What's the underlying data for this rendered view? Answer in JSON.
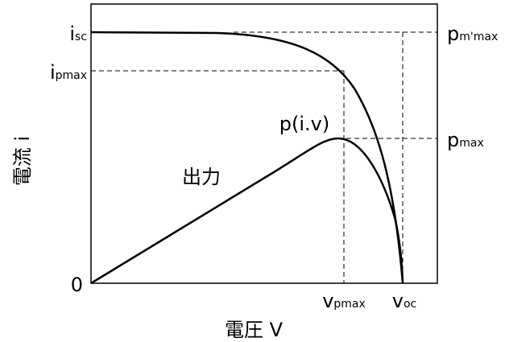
{
  "diagram": {
    "x_axis_title": "電圧 V",
    "y_axis_title": "電流 i",
    "origin_label": "0",
    "left_labels": [
      {
        "main": "i",
        "sub": "sc"
      },
      {
        "main": "i",
        "sub": "pmax"
      }
    ],
    "right_labels": [
      {
        "main": "p",
        "sub": "m'max"
      },
      {
        "main": "p",
        "sub": "max"
      }
    ],
    "bottom_labels": [
      {
        "main": "v",
        "sub": "pmax"
      },
      {
        "main": "v",
        "sub": "oc"
      }
    ],
    "annotations": [
      "p(i.v)",
      "出力"
    ]
  }
}
